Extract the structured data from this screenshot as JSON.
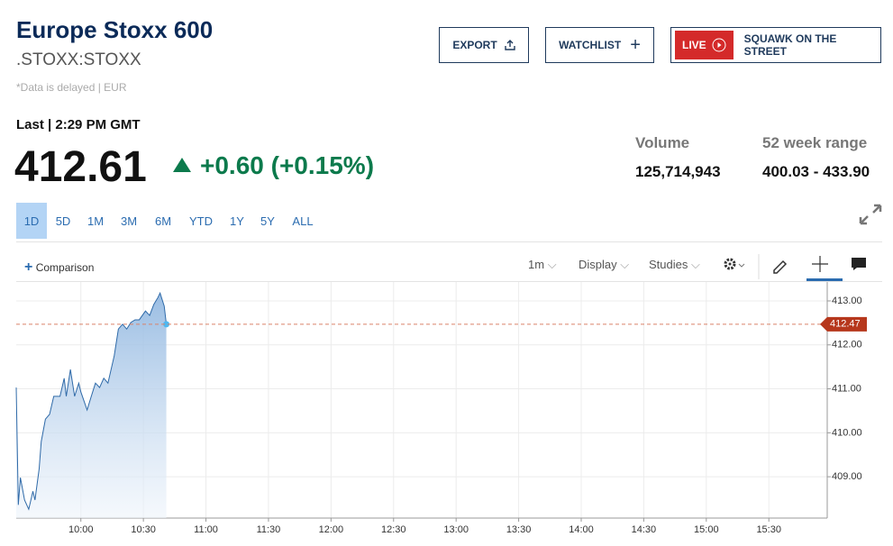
{
  "header": {
    "title": "Europe Stoxx 600",
    "symbol": ".STOXX:STOXX",
    "note": "*Data is delayed | EUR"
  },
  "buttons": {
    "export": "EXPORT",
    "watchlist": "WATCHLIST",
    "live": "LIVE",
    "squawk": "SQUAWK ON THE STREET"
  },
  "quote": {
    "last_label": "Last | 2:29 PM GMT",
    "price": "412.61",
    "change": "+0.60 (+0.15%)",
    "volume_label": "Volume",
    "volume": "125,714,943",
    "range_label": "52 week range",
    "range": "400.03 - 433.90"
  },
  "ranges": [
    "1D",
    "5D",
    "1M",
    "3M",
    "6M",
    "YTD",
    "1Y",
    "5Y",
    "ALL"
  ],
  "toolbar": {
    "comparison": "Comparison",
    "interval": "1m",
    "display": "Display",
    "studies": "Studies"
  },
  "chart_data": {
    "type": "line",
    "x": [
      "9:29",
      "9:30",
      "9:31",
      "9:33",
      "9:35",
      "9:37",
      "9:38",
      "9:40",
      "9:41",
      "9:43",
      "9:45",
      "9:47",
      "9:50",
      "9:52",
      "9:53",
      "9:55",
      "9:57",
      "9:59",
      "10:00",
      "10:03",
      "10:05",
      "10:07",
      "10:09",
      "10:11",
      "10:13",
      "10:16",
      "10:18",
      "10:20",
      "10:22",
      "10:24",
      "10:26",
      "10:28",
      "10:31",
      "10:33",
      "10:35",
      "10:37",
      "10:38",
      "10:40",
      "10:41"
    ],
    "series": [
      {
        "color": "#2f6aa8",
        "values": [
          411.03,
          408.36,
          408.98,
          408.47,
          408.26,
          408.67,
          408.47,
          409.18,
          409.8,
          410.31,
          410.42,
          410.83,
          410.83,
          411.24,
          410.83,
          411.44,
          410.83,
          411.13,
          410.93,
          410.52,
          410.83,
          411.13,
          411.03,
          411.24,
          411.13,
          411.75,
          412.36,
          412.47,
          412.36,
          412.51,
          412.57,
          412.57,
          412.77,
          412.67,
          412.92,
          413.08,
          413.18,
          412.88,
          412.47
        ]
      }
    ],
    "last_price": 412.47,
    "xlim": [
      "9:29",
      "15:58"
    ],
    "xticks": [
      "10:00",
      "10:30",
      "11:00",
      "11:30",
      "12:00",
      "12:30",
      "13:00",
      "13:30",
      "14:00",
      "14:30",
      "15:00",
      "15:30"
    ],
    "ylim": [
      408.06,
      413.43
    ],
    "yticks": [
      {
        "value": 409,
        "label": "409.00"
      },
      {
        "value": 410,
        "label": "410.00"
      },
      {
        "value": 411,
        "label": "411.00"
      },
      {
        "value": 412,
        "label": "412.00"
      },
      {
        "value": 413,
        "label": "413.00"
      }
    ],
    "grid": true
  }
}
